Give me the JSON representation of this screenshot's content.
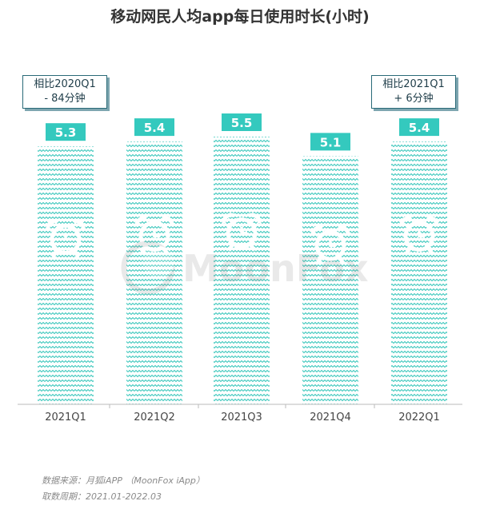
{
  "title": "移动网民人均app每日使用时长(小时)",
  "colors": {
    "bar": "#3ec8bd",
    "label_bg": "#34c9be",
    "label_text": "#ffffff",
    "axis": "#bbbbbb"
  },
  "annotations": {
    "left": {
      "line1": "相比2020Q1",
      "line2": "- 84分钟"
    },
    "right": {
      "line1": "相比2021Q1",
      "line2": "+ 6分钟"
    }
  },
  "watermark": "MoonFox",
  "source": {
    "line1": "数据来源：月狐iAPP （MoonFox iApp）",
    "line2": "取数周期：2021.01-2022.03"
  },
  "chart_data": {
    "type": "bar",
    "categories": [
      "2021Q1",
      "2021Q2",
      "2021Q3",
      "2021Q4",
      "2022Q1"
    ],
    "values": [
      5.3,
      5.4,
      5.5,
      5.1,
      5.4
    ],
    "title": "移动网民人均app每日使用时长(小时)",
    "xlabel": "",
    "ylabel": "",
    "ylim": [
      0,
      5.5
    ],
    "grid": false,
    "legend": "none",
    "bar_icon": "alarm-clock-icon"
  }
}
